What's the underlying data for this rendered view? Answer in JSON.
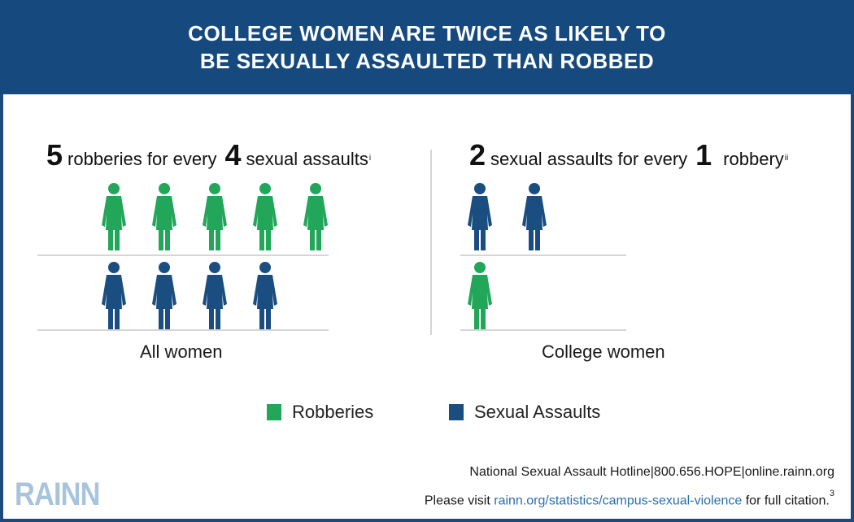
{
  "header": {
    "line1": "COLLEGE WOMEN ARE TWICE AS LIKELY TO",
    "line2": "BE SEXUALLY ASSAULTED THAN ROBBED"
  },
  "left_panel": {
    "num1": "5",
    "text1": "robberies for every",
    "num2": "4",
    "text2": "sexual assaults",
    "note": "i",
    "caption": "All women"
  },
  "right_panel": {
    "num1": "2",
    "text1": "sexual assaults for every",
    "num2": "1",
    "text2": "robbery",
    "note": "ii",
    "caption": "College women"
  },
  "legend": {
    "robberies_label": "Robberies",
    "assaults_label": "Sexual Assaults"
  },
  "colors": {
    "header_bg": "#16497e",
    "robberies": "#22a659",
    "sexual_assaults": "#1a4d80",
    "link": "#2a6fb0"
  },
  "footer": {
    "hotline_line": "National Sexual Assault Hotline|800.656.HOPE|online.rainn.org",
    "visit_prefix": "Please visit",
    "link_text": "rainn.org/statistics/campus-sexual-violence",
    "visit_suffix": "for full citation.",
    "citation_number": "3"
  },
  "logo": {
    "text": "RAINN"
  },
  "chart_data": [
    {
      "type": "pictogram",
      "group": "All women",
      "series": [
        {
          "name": "Robberies",
          "values": [
            5
          ]
        },
        {
          "name": "Sexual Assaults",
          "values": [
            4
          ]
        }
      ]
    },
    {
      "type": "pictogram",
      "group": "College women",
      "series": [
        {
          "name": "Sexual Assaults",
          "values": [
            2
          ]
        },
        {
          "name": "Robberies",
          "values": [
            1
          ]
        }
      ]
    }
  ]
}
